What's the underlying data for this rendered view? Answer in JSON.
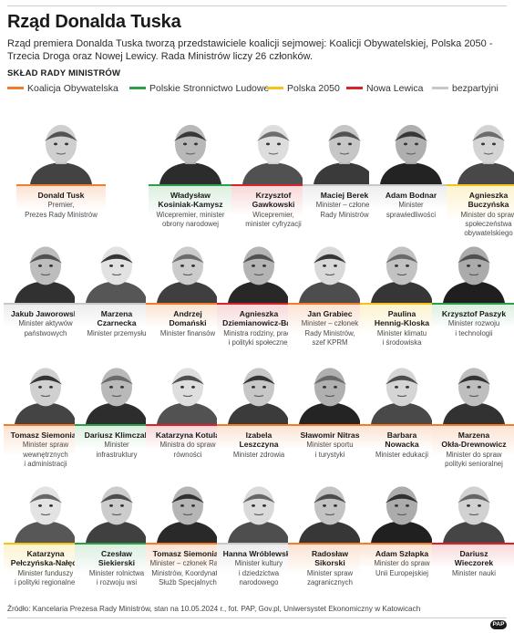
{
  "header": {
    "title": "Rząd Donalda Tuska",
    "intro": "Rząd premiera Donalda Tuska tworzą przedstawiciele koalicji sejmowej: Koalicji Obywatelskiej, Polska 2050 -Trzecia Droga oraz Nowej Lewicy. Rada Ministrów liczy 26 członków.",
    "section_label": "SKŁAD RADY MINISTRÓW"
  },
  "legend": [
    {
      "label": "Koalicja Obywatelska",
      "color": "#f07c2c"
    },
    {
      "label": "Polskie Stronnictwo Ludowe",
      "color": "#2f9e4a"
    },
    {
      "label": "Polska 2050",
      "color": "#f2c419"
    },
    {
      "label": "Nowa Lewica",
      "color": "#d8232a"
    },
    {
      "label": "bezpartyjni",
      "color": "#c8c8c8"
    }
  ],
  "party_tints": {
    "ko": "#fbe3d3",
    "psl": "#dcefe0",
    "p2050": "#fcf3cf",
    "nl": "#f8d8d9",
    "np": "#ededed"
  },
  "members": [
    {
      "name": "Donald Tusk",
      "role": "Premier,\nPrezes Rady Ministrów",
      "party": "ko",
      "icon": "portrait-icon"
    },
    {
      "name": "Władysław\nKosiniak-Kamysz",
      "role": "Wicepremier, minister\nobrony narodowej",
      "party": "psl",
      "icon": "portrait-icon"
    },
    {
      "name": "Krzysztof\nGawkowski",
      "role": "Wicepremier,\nminister cyfryzacji",
      "party": "nl",
      "icon": "portrait-icon"
    },
    {
      "name": "Maciej Berek",
      "role": "Minister – członek\nRady Ministrów",
      "party": "np",
      "icon": "portrait-icon"
    },
    {
      "name": "Adam Bodnar",
      "role": "Minister\nsprawiedliwości",
      "party": "np",
      "icon": "portrait-icon"
    },
    {
      "name": "Agnieszka Buczyńska",
      "role": "Minister do spraw\nspołeczeństwa\nobywatelskiego",
      "party": "p2050",
      "icon": "portrait-icon"
    },
    {
      "name": "Jakub Jaworowski",
      "role": "Minister aktywów\npaństwowych",
      "party": "np",
      "icon": "portrait-icon"
    },
    {
      "name": "Marzena\nCzarnecka",
      "role": "Minister przemysłu",
      "party": "np",
      "icon": "portrait-icon"
    },
    {
      "name": "Andrzej\nDomański",
      "role": "Minister finansów",
      "party": "ko",
      "icon": "portrait-icon"
    },
    {
      "name": "Agnieszka\nDziemianowicz-Bąk",
      "role": "Ministra rodziny, pracy\ni polityki społecznej",
      "party": "nl",
      "icon": "portrait-icon"
    },
    {
      "name": "Jan Grabiec",
      "role": "Minister – członek\nRady Ministrów,\nszef KPRM",
      "party": "ko",
      "icon": "portrait-icon"
    },
    {
      "name": "Paulina\nHennig-Kloska",
      "role": "Minister klimatu\ni środowiska",
      "party": "p2050",
      "icon": "portrait-icon"
    },
    {
      "name": "Krzysztof Paszyk",
      "role": "Minister rozwoju\ni technologii",
      "party": "psl",
      "icon": "portrait-icon"
    },
    {
      "name": "Tomasz Siemoniak",
      "role": "Minister spraw\nwewnętrznych\ni administracji",
      "party": "ko",
      "icon": "portrait-icon"
    },
    {
      "name": "Dariusz Klimczak",
      "role": "Minister\ninfrastruktury",
      "party": "psl",
      "icon": "portrait-icon"
    },
    {
      "name": "Katarzyna Kotula",
      "role": "Ministra do spraw\nrówności",
      "party": "nl",
      "icon": "portrait-icon"
    },
    {
      "name": "Izabela\nLeszczyna",
      "role": "Minister zdrowia",
      "party": "ko",
      "icon": "portrait-icon"
    },
    {
      "name": "Sławomir Nitras",
      "role": "Minister sportu\ni turystyki",
      "party": "ko",
      "icon": "portrait-icon"
    },
    {
      "name": "Barbara\nNowacka",
      "role": "Minister edukacji",
      "party": "ko",
      "icon": "portrait-icon"
    },
    {
      "name": "Marzena\nOkła-Drewnowicz",
      "role": "Minister do spraw\npolityki senioralnej",
      "party": "ko",
      "icon": "portrait-icon"
    },
    {
      "name": "Katarzyna\nPełczyńska-Nałęcz",
      "role": "Minister funduszy\ni polityki regionalnej",
      "party": "p2050",
      "icon": "portrait-icon"
    },
    {
      "name": "Czesław\nSiekierski",
      "role": "Minister rolnictwa\ni rozwoju wsi",
      "party": "psl",
      "icon": "portrait-icon"
    },
    {
      "name": "Tomasz Siemoniak",
      "role": "Minister – członek Rady\nMinistrów, Koordynator\nSłużb Specjalnych",
      "party": "ko",
      "icon": "portrait-icon"
    },
    {
      "name": "Hanna Wróblewska",
      "role": "Minister kultury\ni dziedzictwa\nnarodowego",
      "party": "np",
      "icon": "portrait-icon"
    },
    {
      "name": "Radosław\nSikorski",
      "role": "Minister spraw\nzagranicznych",
      "party": "ko",
      "icon": "portrait-icon"
    },
    {
      "name": "Adam Szłapka",
      "role": "Minister do spraw\nUnii Europejskiej",
      "party": "ko",
      "icon": "portrait-icon"
    },
    {
      "name": "Dariusz\nWieczorek",
      "role": "Minister nauki",
      "party": "nl",
      "icon": "portrait-icon"
    }
  ],
  "footer": {
    "source": "Źródło: Kancelaria Prezesa Rady Ministrów, stan na 10.05.2024 r., fot. PAP, Gov.pl, Uniwersystet Ekonomiczny w Katowicach",
    "logo": "PAP"
  }
}
